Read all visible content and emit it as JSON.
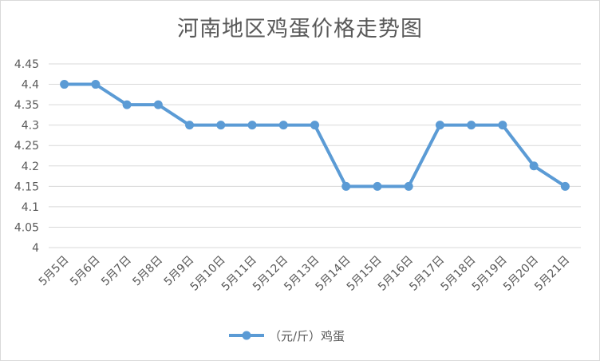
{
  "chart_data": {
    "type": "line",
    "title": "河南地区鸡蛋价格走势图",
    "categories": [
      "5月5日",
      "5月6日",
      "5月7日",
      "5月8日",
      "5月9日",
      "5月10日",
      "5月11日",
      "5月12日",
      "5月13日",
      "5月14日",
      "5月15日",
      "5月16日",
      "5月17日",
      "5月18日",
      "5月19日",
      "5月20日",
      "5月21日"
    ],
    "series": [
      {
        "name": "（元/斤）鸡蛋",
        "values": [
          4.4,
          4.4,
          4.35,
          4.35,
          4.3,
          4.3,
          4.3,
          4.3,
          4.3,
          4.15,
          4.15,
          4.15,
          4.3,
          4.3,
          4.3,
          4.2,
          4.15
        ],
        "color": "#5b9bd5"
      }
    ],
    "ylim": [
      4,
      4.45
    ],
    "yticks": [
      "4",
      "4.05",
      "4.1",
      "4.15",
      "4.2",
      "4.25",
      "4.3",
      "4.35",
      "4.4",
      "4.45"
    ],
    "grid": true,
    "legend": "bottom",
    "colors": {
      "grid": "#d9d9d9",
      "text": "#595959",
      "series": "#5b9bd5"
    }
  }
}
